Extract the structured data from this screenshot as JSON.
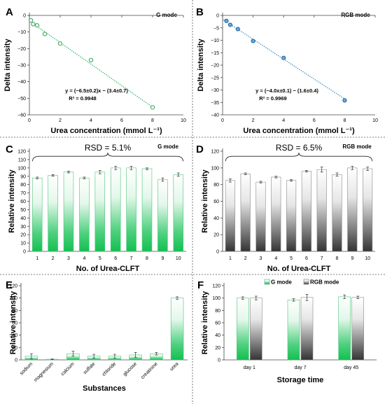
{
  "colors": {
    "green": "#13c04f",
    "green_top": "#ffffff",
    "gray": "#3a3a3a",
    "gray_top": "#ffffff",
    "scatter_green": "#2e9e52",
    "scatter_blue": "#1f63a8",
    "fit_green": "#18b258",
    "fit_blue": "#2c84b8",
    "divider": "#555555"
  },
  "chart_data": [
    {
      "id": "A",
      "type": "scatter",
      "panel_label": "A",
      "mode_label": "G mode",
      "xlabel": "Urea concentration (mmol L⁻¹)",
      "ylabel": "Delta intensity",
      "xlim": [
        0,
        10
      ],
      "ylim": [
        -60,
        0
      ],
      "xticks": [
        0,
        2,
        4,
        6,
        8,
        10
      ],
      "yticks": [
        -60,
        -50,
        -40,
        -30,
        -20,
        -10,
        0
      ],
      "points": [
        {
          "x": 0.1,
          "y": -3.0,
          "err": 0.8
        },
        {
          "x": 0.25,
          "y": -5.3,
          "err": 0.8
        },
        {
          "x": 0.5,
          "y": -6.0,
          "err": 0.8
        },
        {
          "x": 1.0,
          "y": -11.2,
          "err": 0.9
        },
        {
          "x": 2.0,
          "y": -17.0,
          "err": 0.9
        },
        {
          "x": 4.0,
          "y": -27.0,
          "err": 0.8
        },
        {
          "x": 8.0,
          "y": -55.5,
          "err": 1.0
        }
      ],
      "fit": {
        "slope": -6.5,
        "intercept": -3.4
      },
      "equation": "y = (−6.5±0.2)x − (3.4±0.7)",
      "r2": "R² = 0.9948",
      "grid": false
    },
    {
      "id": "B",
      "type": "scatter",
      "panel_label": "B",
      "mode_label": "RGB mode",
      "xlabel": "Urea concentration (mmol L⁻¹)",
      "ylabel": "Delta intensity",
      "xlim": [
        0,
        10
      ],
      "ylim": [
        -40,
        0
      ],
      "xticks": [
        0,
        2,
        4,
        6,
        8,
        10
      ],
      "yticks": [
        -40,
        -35,
        -30,
        -25,
        -20,
        -15,
        -10,
        -5,
        0
      ],
      "points": [
        {
          "x": 0.25,
          "y": -2.2,
          "err": 0.4
        },
        {
          "x": 0.5,
          "y": -3.8,
          "err": 0.4
        },
        {
          "x": 1.0,
          "y": -5.5,
          "err": 0.4
        },
        {
          "x": 2.0,
          "y": -10.3,
          "err": 0.5
        },
        {
          "x": 4.0,
          "y": -17.1,
          "err": 0.5
        },
        {
          "x": 8.0,
          "y": -34.2,
          "err": 0.5
        }
      ],
      "fit": {
        "slope": -4.0,
        "intercept": -1.6
      },
      "equation": "y = (−4.0x±0.1) − (1.6±0.4)",
      "r2": "R² = 0.9969",
      "grid": false
    },
    {
      "id": "C",
      "type": "bar",
      "panel_label": "C",
      "mode_label": "G mode",
      "style": "green",
      "annotation": "RSD = 5.1%",
      "xlabel": "No. of Urea-CLFT",
      "ylabel": "Relative intensity",
      "ylim": [
        0,
        120
      ],
      "yticks": [
        0,
        10,
        20,
        30,
        40,
        50,
        60,
        70,
        80,
        90,
        100,
        110,
        120
      ],
      "categories": [
        "1",
        "2",
        "3",
        "4",
        "5",
        "6",
        "7",
        "8",
        "9",
        "10"
      ],
      "values": [
        88,
        91,
        95,
        88,
        95,
        100,
        100,
        99,
        86,
        92
      ],
      "errors": [
        1,
        1,
        1,
        1,
        2,
        2,
        2,
        1,
        2,
        2
      ],
      "grid": false
    },
    {
      "id": "D",
      "type": "bar",
      "panel_label": "D",
      "mode_label": "RGB mode",
      "style": "gray",
      "annotation": "RSD = 6.5%",
      "xlabel": "No. of Urea-CLFT",
      "ylabel": "Relative intensity",
      "ylim": [
        0,
        120
      ],
      "yticks": [
        0,
        20,
        40,
        60,
        80,
        100,
        120
      ],
      "categories": [
        "1",
        "2",
        "3",
        "4",
        "5",
        "6",
        "7",
        "8",
        "9",
        "10"
      ],
      "values": [
        85,
        93,
        83,
        89,
        85,
        96,
        98,
        92,
        100,
        99
      ],
      "errors": [
        2,
        1,
        1,
        1,
        1,
        1,
        3,
        2,
        2,
        2
      ],
      "grid": false
    },
    {
      "id": "E",
      "type": "bar",
      "panel_label": "E",
      "style": "green",
      "xlabel": "Substances",
      "ylabel": "Relative intensity",
      "ylim": [
        0,
        120
      ],
      "yticks": [
        0,
        20,
        40,
        60,
        80,
        100,
        120
      ],
      "categories": [
        "sodium",
        "magnesium",
        "calcium",
        "sulfate",
        "chloride",
        "glucose",
        "creatinine",
        "urea"
      ],
      "values": [
        6,
        1,
        10,
        6,
        6,
        8,
        10,
        100
      ],
      "errors": [
        4,
        0.5,
        4,
        3,
        3,
        4,
        2,
        2
      ],
      "grid": false
    },
    {
      "id": "F",
      "type": "bar",
      "panel_label": "F",
      "xlabel": "Storage time",
      "ylabel": "Relative intensity",
      "ylim": [
        0,
        120
      ],
      "yticks": [
        0,
        20,
        40,
        60,
        80,
        100,
        120
      ],
      "categories": [
        "day 1",
        "day 7",
        "day 45"
      ],
      "series": [
        {
          "name": "G mode",
          "style": "green",
          "values": [
            100,
            97,
            102
          ],
          "errors": [
            2,
            2,
            3
          ]
        },
        {
          "name": "RGB mode",
          "style": "gray",
          "values": [
            100,
            101,
            101
          ],
          "errors": [
            3,
            5,
            2
          ]
        }
      ],
      "legend": "top",
      "grid": false
    }
  ]
}
